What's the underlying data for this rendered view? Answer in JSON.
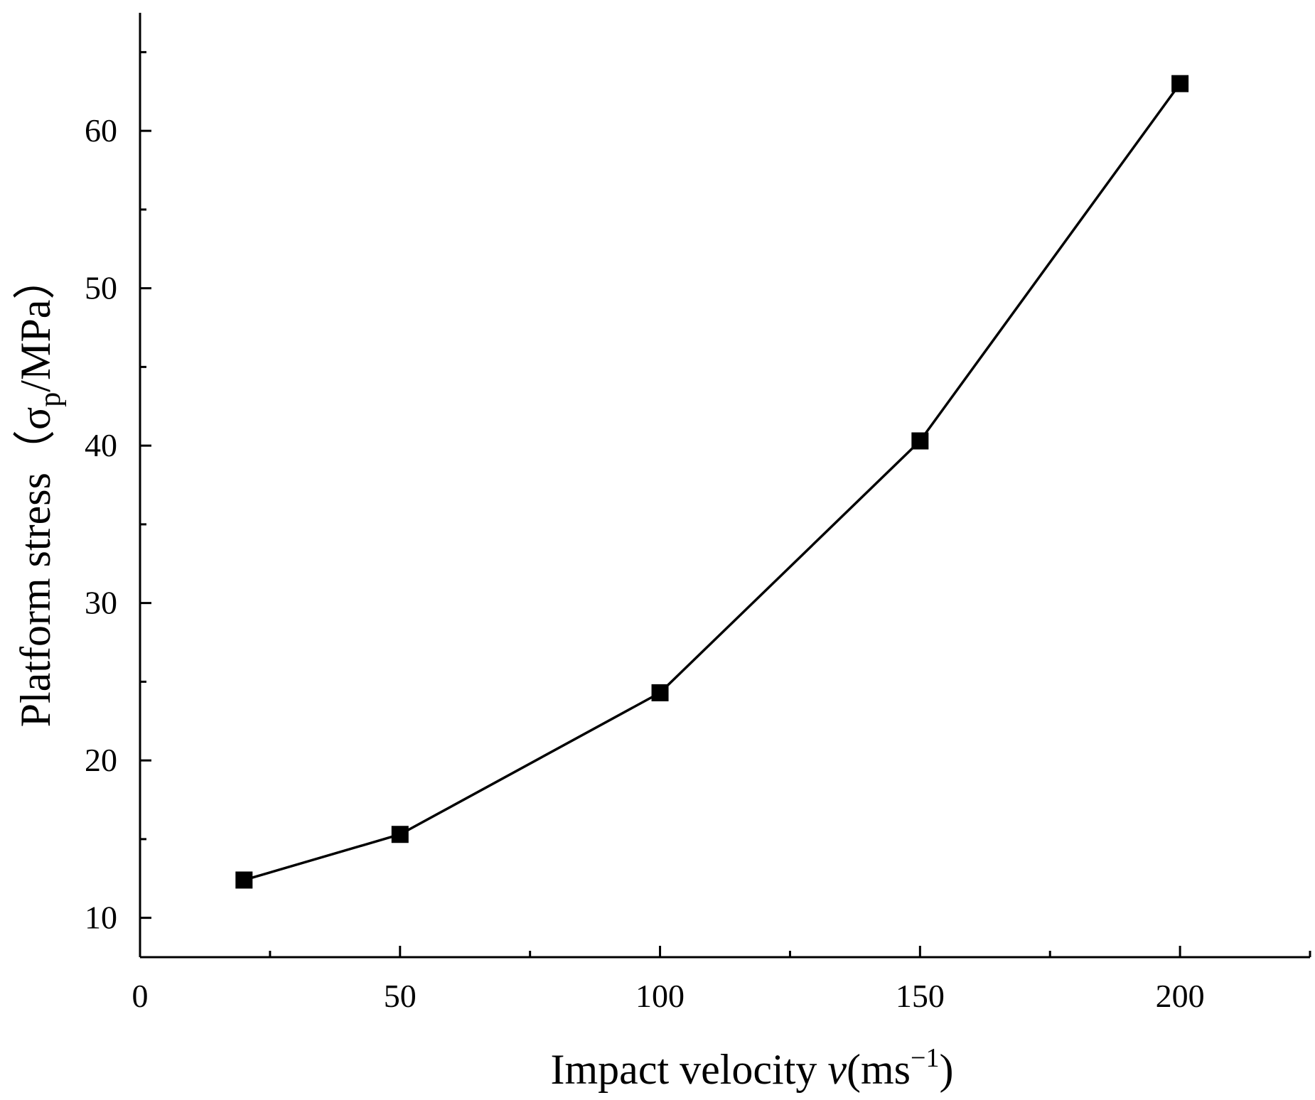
{
  "chart_data": {
    "type": "line",
    "title": "",
    "xlabel": {
      "main": "Impact velocity ",
      "var": "v",
      "unit_open": "(ms",
      "unit_sup": "−1",
      "unit_close": ")"
    },
    "ylabel": {
      "main": "Platform stress（σ",
      "sub": "p",
      "rest": "/MPa）"
    },
    "xlim": [
      0,
      225
    ],
    "ylim": [
      7.5,
      67.5
    ],
    "x_ticks": [
      0,
      50,
      100,
      150,
      200
    ],
    "x_tick_labels": [
      "0",
      "50",
      "100",
      "150",
      "200"
    ],
    "x_minor_ticks": [
      25,
      75,
      125,
      175,
      225
    ],
    "y_ticks": [
      10,
      20,
      30,
      40,
      50,
      60
    ],
    "y_tick_labels": [
      "10",
      "20",
      "30",
      "40",
      "50",
      "60"
    ],
    "y_minor_ticks": [
      15,
      25,
      35,
      45,
      55,
      65
    ],
    "series": [
      {
        "name": "Platform stress",
        "marker": "square",
        "color": "#000000",
        "x": [
          20,
          50,
          100,
          150,
          200
        ],
        "y": [
          12.4,
          15.3,
          24.3,
          40.3,
          63.0
        ]
      }
    ]
  }
}
